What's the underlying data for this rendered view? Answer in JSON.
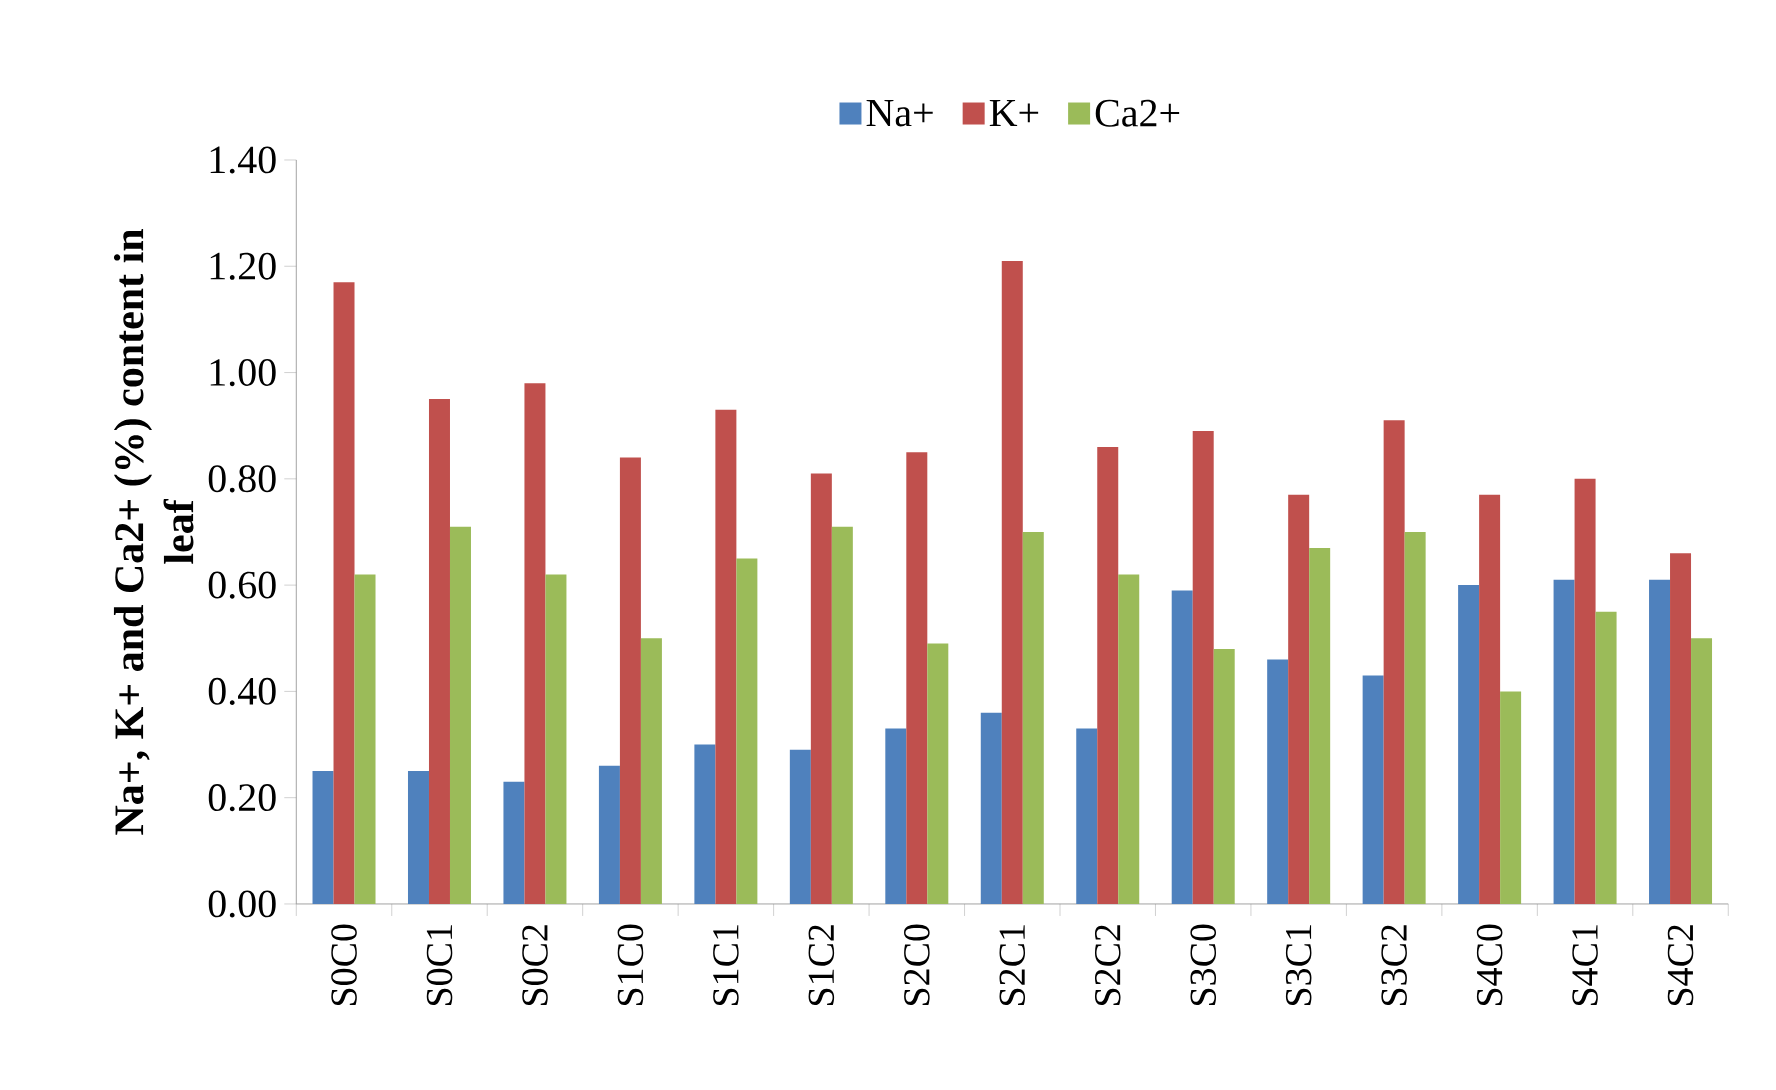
{
  "chart_data": {
    "type": "bar",
    "ylabel": "Na+, K+ and Ca2+ (%) content in leaf",
    "categories": [
      "S0C0",
      "S0C1",
      "S0C2",
      "S1C0",
      "S1C1",
      "S1C2",
      "S2C0",
      "S2C1",
      "S2C2",
      "S3C0",
      "S3C1",
      "S3C2",
      "S4C0",
      "S4C1",
      "S4C2"
    ],
    "series": [
      {
        "name": "Na+",
        "color": "#4f81bd",
        "values": [
          0.25,
          0.25,
          0.23,
          0.26,
          0.3,
          0.29,
          0.33,
          0.36,
          0.33,
          0.59,
          0.46,
          0.43,
          0.6,
          0.61,
          0.61
        ]
      },
      {
        "name": "K+",
        "color": "#c0504d",
        "values": [
          1.17,
          0.95,
          0.98,
          0.84,
          0.93,
          0.81,
          0.85,
          1.21,
          0.86,
          0.89,
          0.77,
          0.91,
          0.77,
          0.8,
          0.66
        ]
      },
      {
        "name": "Ca2+",
        "color": "#9bbb59",
        "values": [
          0.62,
          0.71,
          0.62,
          0.5,
          0.65,
          0.71,
          0.49,
          0.7,
          0.62,
          0.48,
          0.67,
          0.7,
          0.4,
          0.55,
          0.5
        ]
      }
    ],
    "ylim": [
      0,
      1.4
    ],
    "yticks": [
      {
        "value": 0,
        "label": "0.00"
      },
      {
        "value": 0.2,
        "label": "0.20"
      },
      {
        "value": 0.4,
        "label": "0.40"
      },
      {
        "value": 0.6,
        "label": "0.60"
      },
      {
        "value": 0.8,
        "label": "0.80"
      },
      {
        "value": 1.0,
        "label": "1.00"
      },
      {
        "value": 1.2,
        "label": "1.20"
      },
      {
        "value": 1.4,
        "label": "1.40"
      }
    ],
    "grid": false,
    "legend": "top"
  }
}
